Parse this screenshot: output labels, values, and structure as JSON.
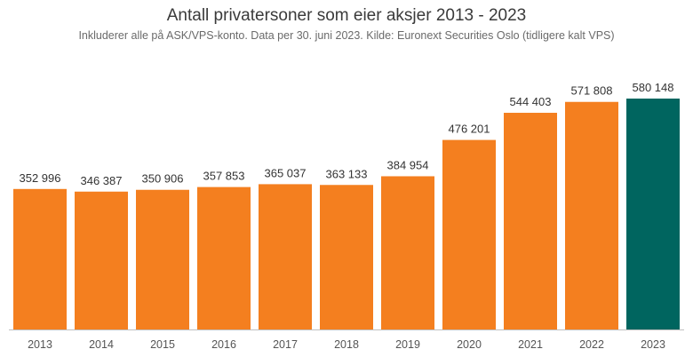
{
  "chart_data": {
    "type": "bar",
    "title": "Antall privatersoner som eier aksjer 2013 - 2023",
    "subtitle": "Inkluderer alle på ASK/VPS-konto. Data per 30. juni 2023. Kilde: Euronext Securities Oslo (tidligere kalt VPS)",
    "categories": [
      "2013",
      "2014",
      "2015",
      "2016",
      "2017",
      "2018",
      "2019",
      "2020",
      "2021",
      "2022",
      "2023"
    ],
    "values": [
      352996,
      346387,
      350906,
      357853,
      365037,
      363133,
      384954,
      476201,
      544403,
      571808,
      580148
    ],
    "labels": [
      "352 996",
      "346 387",
      "350 906",
      "357 853",
      "365 037",
      "363 133",
      "384 954",
      "476 201",
      "544 403",
      "571 808",
      "580 148"
    ],
    "xlabel": "",
    "ylabel": "",
    "ylim": [
      0,
      580148
    ],
    "grid": false,
    "colors": {
      "default": "#F47F1F",
      "highlight": "#00655F",
      "highlight_category": "2023",
      "axis": "#bfbfbf"
    }
  }
}
